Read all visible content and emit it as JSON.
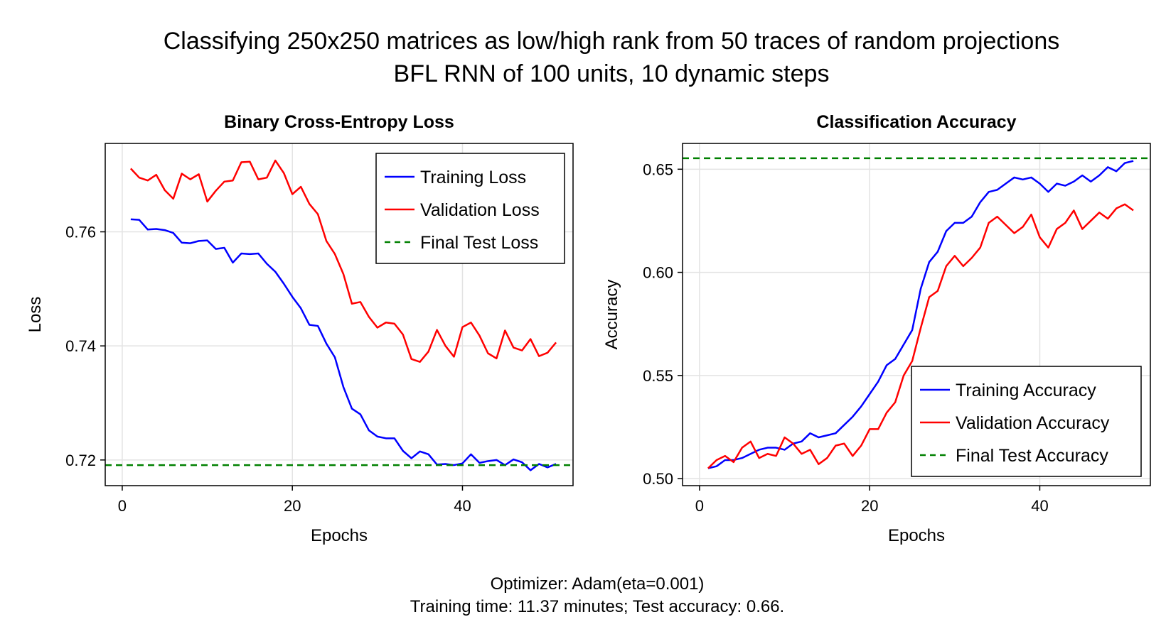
{
  "figure": {
    "title_line1": "Classifying 250x250 matrices as low/high rank from 50 traces of random projections",
    "title_line2": "BFL RNN of 100 units, 10 dynamic steps",
    "footer_line1": "Optimizer: Adam(eta=0.001)",
    "footer_line2": "Training time: 11.37 minutes; Test accuracy: 0.66."
  },
  "chart_data": [
    {
      "type": "line",
      "title": "Binary Cross-Entropy Loss",
      "xlabel": "Epochs",
      "ylabel": "Loss",
      "xlim": [
        -2,
        53
      ],
      "ylim": [
        0.7155,
        0.7755
      ],
      "xticks": [
        0,
        20,
        40
      ],
      "yticks": [
        0.72,
        0.74,
        0.76
      ],
      "ytick_labels": [
        "0.72",
        "0.74",
        "0.76"
      ],
      "grid": true,
      "legend_position": "top-right",
      "x": [
        1,
        2,
        3,
        4,
        5,
        6,
        7,
        8,
        9,
        10,
        11,
        12,
        13,
        14,
        15,
        16,
        17,
        18,
        19,
        20,
        21,
        22,
        23,
        24,
        25,
        26,
        27,
        28,
        29,
        30,
        31,
        32,
        33,
        34,
        35,
        36,
        37,
        38,
        39,
        40,
        41,
        42,
        43,
        44,
        45,
        46,
        47,
        48,
        49,
        50,
        51
      ],
      "series": [
        {
          "name": "Training Loss",
          "color": "#0000ff",
          "style": "solid",
          "values": [
            0.7622,
            0.7621,
            0.7604,
            0.7605,
            0.7603,
            0.7598,
            0.7581,
            0.758,
            0.7584,
            0.7585,
            0.757,
            0.7572,
            0.7546,
            0.7562,
            0.7561,
            0.7562,
            0.7544,
            0.753,
            0.7509,
            0.7486,
            0.7466,
            0.7437,
            0.7435,
            0.7404,
            0.738,
            0.7328,
            0.729,
            0.728,
            0.7252,
            0.7241,
            0.7238,
            0.7238,
            0.7216,
            0.7203,
            0.7215,
            0.721,
            0.7192,
            0.7193,
            0.7191,
            0.7194,
            0.721,
            0.7195,
            0.7198,
            0.72,
            0.7191,
            0.7201,
            0.7196,
            0.7182,
            0.7193,
            0.7187,
            0.7193
          ]
        },
        {
          "name": "Validation Loss",
          "color": "#ff0000",
          "style": "solid",
          "values": [
            0.7711,
            0.7695,
            0.769,
            0.77,
            0.7673,
            0.7658,
            0.7702,
            0.7692,
            0.7701,
            0.7653,
            0.7672,
            0.7688,
            0.769,
            0.7722,
            0.7723,
            0.7692,
            0.7695,
            0.7725,
            0.7703,
            0.7666,
            0.7679,
            0.7649,
            0.7631,
            0.7584,
            0.7561,
            0.7526,
            0.7474,
            0.7477,
            0.7451,
            0.7432,
            0.7441,
            0.7439,
            0.742,
            0.7377,
            0.7372,
            0.739,
            0.7428,
            0.74,
            0.7381,
            0.7433,
            0.7441,
            0.7418,
            0.7387,
            0.7378,
            0.7427,
            0.7397,
            0.7392,
            0.7412,
            0.7382,
            0.7388,
            0.7406
          ]
        },
        {
          "name": "Final Test Loss",
          "color": "#008000",
          "style": "dashed",
          "hline": 0.7191
        }
      ]
    },
    {
      "type": "line",
      "title": "Classification Accuracy",
      "xlabel": "Epochs",
      "ylabel": "Accuracy",
      "xlim": [
        -2,
        53
      ],
      "ylim": [
        0.4966,
        0.6625
      ],
      "xticks": [
        0,
        20,
        40
      ],
      "yticks": [
        0.5,
        0.55,
        0.6,
        0.65
      ],
      "ytick_labels": [
        "0.50",
        "0.55",
        "0.60",
        "0.65"
      ],
      "grid": true,
      "legend_position": "bottom-right",
      "x": [
        1,
        2,
        3,
        4,
        5,
        6,
        7,
        8,
        9,
        10,
        11,
        12,
        13,
        14,
        15,
        16,
        17,
        18,
        19,
        20,
        21,
        22,
        23,
        24,
        25,
        26,
        27,
        28,
        29,
        30,
        31,
        32,
        33,
        34,
        35,
        36,
        37,
        38,
        39,
        40,
        41,
        42,
        43,
        44,
        45,
        46,
        47,
        48,
        49,
        50,
        51
      ],
      "series": [
        {
          "name": "Training Accuracy",
          "color": "#0000ff",
          "style": "solid",
          "values": [
            0.505,
            0.506,
            0.509,
            0.509,
            0.51,
            0.512,
            0.514,
            0.515,
            0.515,
            0.514,
            0.517,
            0.518,
            0.522,
            0.52,
            0.521,
            0.522,
            0.526,
            0.53,
            0.535,
            0.541,
            0.547,
            0.555,
            0.558,
            0.565,
            0.572,
            0.592,
            0.605,
            0.61,
            0.62,
            0.624,
            0.624,
            0.627,
            0.634,
            0.639,
            0.64,
            0.643,
            0.646,
            0.645,
            0.646,
            0.643,
            0.639,
            0.643,
            0.642,
            0.644,
            0.647,
            0.644,
            0.647,
            0.651,
            0.649,
            0.653,
            0.654
          ]
        },
        {
          "name": "Validation Accuracy",
          "color": "#ff0000",
          "style": "solid",
          "values": [
            0.505,
            0.509,
            0.511,
            0.508,
            0.515,
            0.518,
            0.51,
            0.512,
            0.511,
            0.52,
            0.517,
            0.512,
            0.514,
            0.507,
            0.51,
            0.516,
            0.517,
            0.511,
            0.516,
            0.524,
            0.524,
            0.532,
            0.537,
            0.55,
            0.557,
            0.573,
            0.588,
            0.591,
            0.603,
            0.608,
            0.603,
            0.607,
            0.612,
            0.624,
            0.627,
            0.623,
            0.619,
            0.622,
            0.628,
            0.617,
            0.612,
            0.621,
            0.624,
            0.63,
            0.621,
            0.625,
            0.629,
            0.626,
            0.631,
            0.633,
            0.63
          ]
        },
        {
          "name": "Final Test Accuracy",
          "color": "#008000",
          "style": "dashed",
          "hline": 0.6553
        }
      ]
    }
  ]
}
